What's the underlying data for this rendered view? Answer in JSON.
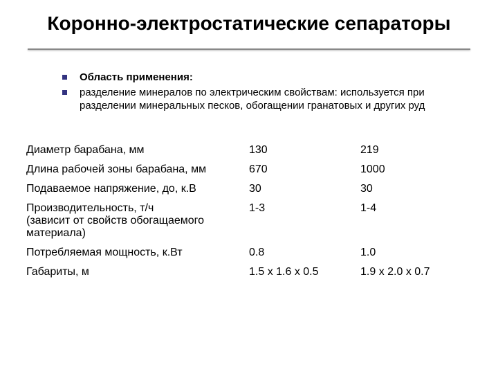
{
  "title": "Коронно-электростатические сепараторы",
  "bullets": [
    {
      "text": "Область применения:",
      "bold": true
    },
    {
      "text": "разделение минералов по электрическим свойствам: используется при разделении минеральных песков, обогащении гранатовых и других руд",
      "bold": false
    }
  ],
  "table": {
    "rows": [
      {
        "param": "Диаметр барабана, мм",
        "c1": "130",
        "c2": "219"
      },
      {
        "param": "Длина рабочей зоны барабана, мм",
        "c1": "670",
        "c2": "1000"
      },
      {
        "param": "Подаваемое напряжение, до, к.В",
        "c1": "30",
        "c2": "30"
      },
      {
        "param": "Производительность, т/ч\n(зависит от свойств обогащаемого материала)",
        "c1": "1-3",
        "c2": "1-4"
      },
      {
        "param": "Потребляемая мощность, к.Вт",
        "c1": "0.8",
        "c2": "1.0"
      },
      {
        "param": "Габариты, м",
        "c1": "1.5 х 1.6 х 0.5",
        "c2": "1.9 х 2.0 х 0.7"
      }
    ]
  },
  "colors": {
    "bullet": "#333380",
    "text": "#000000",
    "background": "#ffffff",
    "rule": "#888888"
  }
}
